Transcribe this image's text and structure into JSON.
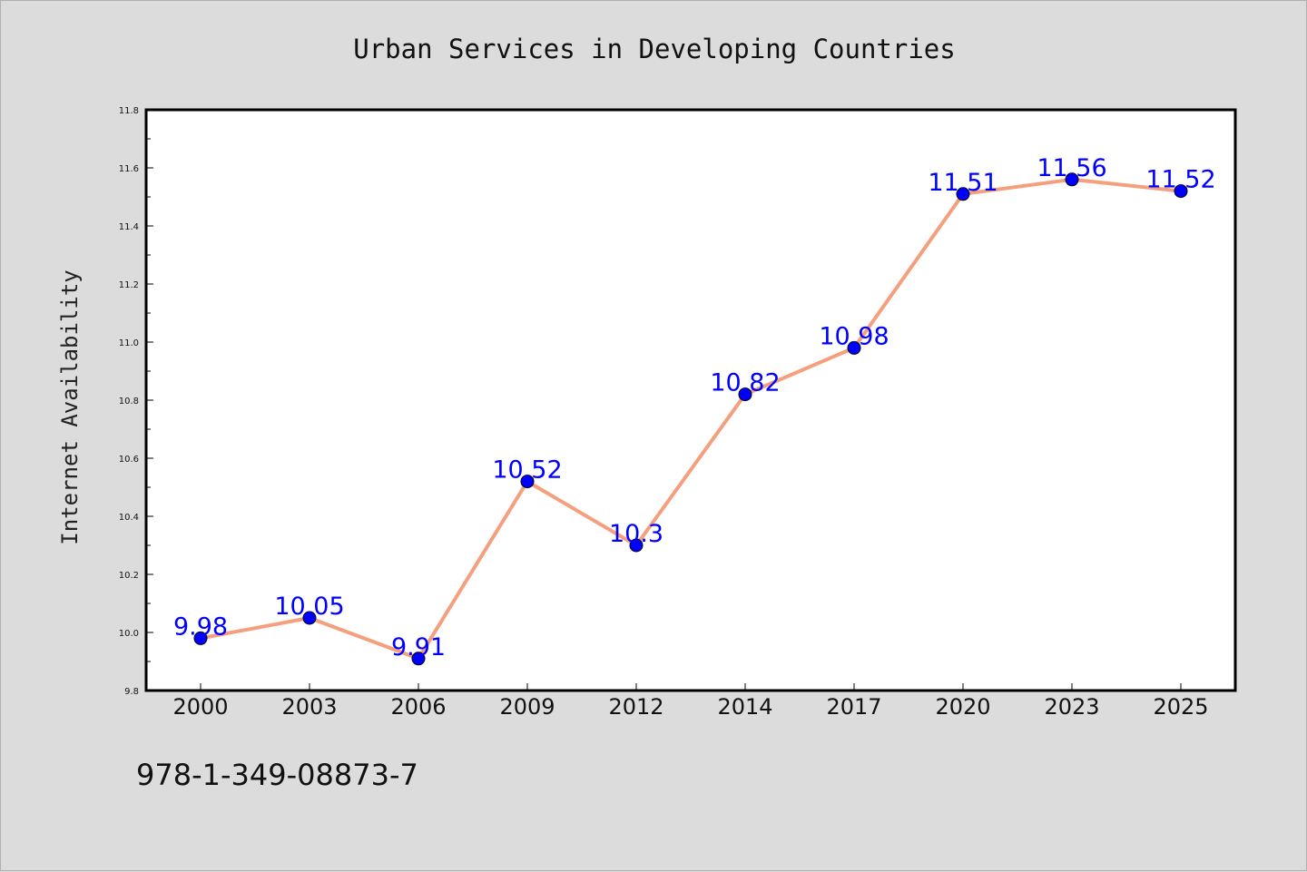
{
  "chart_data": {
    "type": "line",
    "title": "Urban Services in Developing Countries",
    "xlabel": "",
    "ylabel": "Internet Availability",
    "categories": [
      "2000",
      "2003",
      "2006",
      "2009",
      "2012",
      "2014",
      "2017",
      "2020",
      "2023",
      "2025"
    ],
    "series": [
      {
        "values": [
          9.98,
          10.05,
          9.91,
          10.52,
          10.3,
          10.82,
          10.98,
          11.51,
          11.56,
          11.52
        ],
        "line_color": "#f4a07e",
        "marker_color": "#0000ff"
      }
    ],
    "ylim": [
      9.8,
      11.8
    ],
    "yticks": [
      "9.8",
      "10.0",
      "10.2",
      "10.4",
      "10.6",
      "10.8",
      "11.0",
      "11.2",
      "11.4",
      "11.6",
      "11.8"
    ],
    "data_labels": [
      "9.98",
      "10.05",
      "9.91",
      "10.52",
      "10.3",
      "10.82",
      "10.98",
      "11.51",
      "11.56",
      "11.52"
    ],
    "grid": false,
    "legend": "none"
  },
  "footer_text": "978-1-349-08873-7"
}
